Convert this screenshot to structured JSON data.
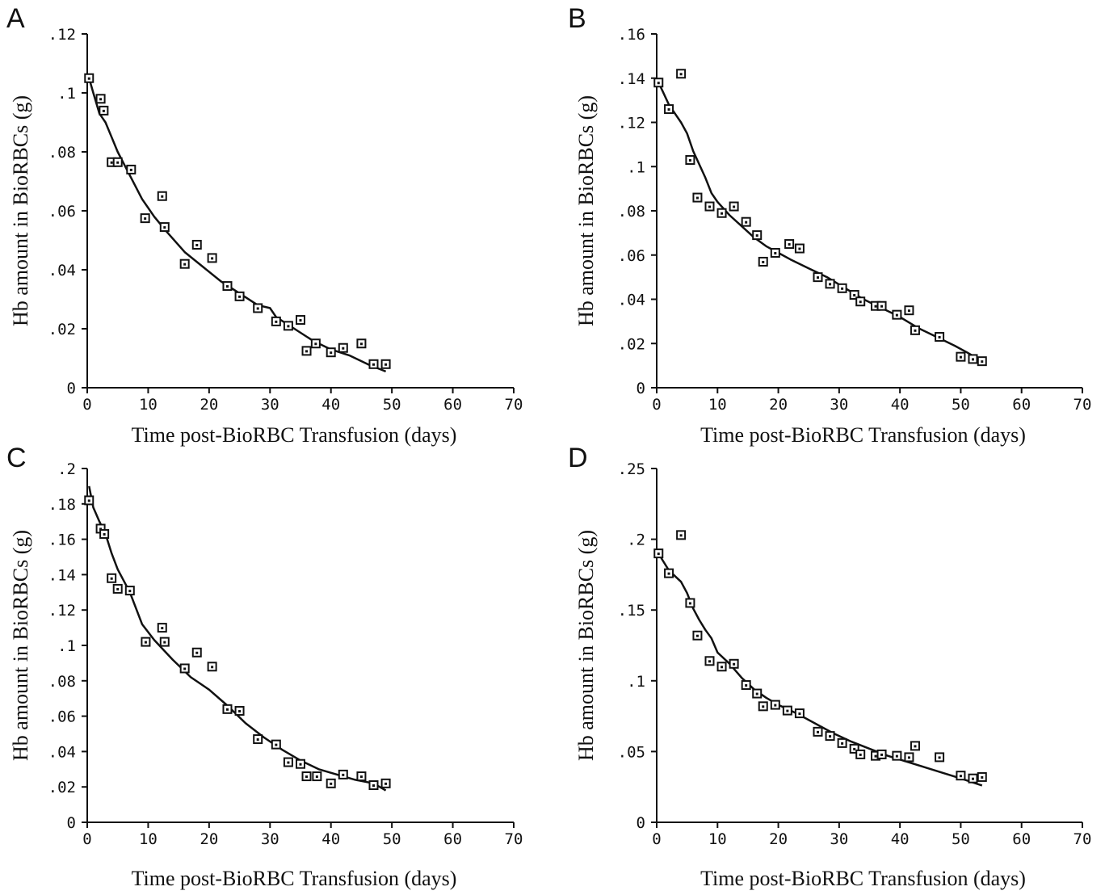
{
  "chart_data": [
    {
      "type": "scatter",
      "panel": "A",
      "xlabel": "Time post-BioRBC Transfusion (days)",
      "ylabel": "Hb amount in BioRBCs (g)",
      "xlim": [
        0,
        70
      ],
      "ylim": [
        0,
        0.12
      ],
      "xticks": [
        "0",
        "10",
        "20",
        "30",
        "40",
        "50",
        "60",
        "70"
      ],
      "yticks": [
        "0",
        ".02",
        ".04",
        ".06",
        ".08",
        ".1",
        ".12"
      ],
      "points": [
        [
          0.3,
          0.105
        ],
        [
          2.2,
          0.098
        ],
        [
          2.7,
          0.094
        ],
        [
          4,
          0.0765
        ],
        [
          5,
          0.0765
        ],
        [
          7.2,
          0.074
        ],
        [
          9.5,
          0.0575
        ],
        [
          12.3,
          0.065
        ],
        [
          12.7,
          0.0545
        ],
        [
          16,
          0.042
        ],
        [
          18,
          0.0485
        ],
        [
          20.5,
          0.044
        ],
        [
          23,
          0.0345
        ],
        [
          25,
          0.031
        ],
        [
          28,
          0.027
        ],
        [
          31,
          0.0225
        ],
        [
          33,
          0.021
        ],
        [
          35,
          0.023
        ],
        [
          36,
          0.0125
        ],
        [
          37.5,
          0.015
        ],
        [
          40,
          0.012
        ],
        [
          42,
          0.0135
        ],
        [
          45,
          0.015
        ],
        [
          47,
          0.008
        ],
        [
          49,
          0.008
        ]
      ],
      "fit": [
        [
          0.3,
          0.105
        ],
        [
          1,
          0.1
        ],
        [
          2,
          0.093
        ],
        [
          3,
          0.09
        ],
        [
          4,
          0.085
        ],
        [
          5,
          0.08
        ],
        [
          7,
          0.072
        ],
        [
          9,
          0.064
        ],
        [
          11,
          0.058
        ],
        [
          13,
          0.053
        ],
        [
          16,
          0.046
        ],
        [
          19,
          0.041
        ],
        [
          22,
          0.036
        ],
        [
          25,
          0.032
        ],
        [
          28,
          0.028
        ],
        [
          30,
          0.027
        ],
        [
          31,
          0.024
        ],
        [
          34,
          0.02
        ],
        [
          37,
          0.016
        ],
        [
          40,
          0.013
        ],
        [
          43,
          0.011
        ],
        [
          46,
          0.008
        ],
        [
          49,
          0.0055
        ]
      ]
    },
    {
      "type": "scatter",
      "panel": "B",
      "xlabel": "Time post-BioRBC Transfusion (days)",
      "ylabel": "Hb amount in BioRBCs (g)",
      "xlim": [
        0,
        70
      ],
      "ylim": [
        0,
        0.16
      ],
      "xticks": [
        "0",
        "10",
        "20",
        "30",
        "40",
        "50",
        "60",
        "70"
      ],
      "yticks": [
        "0",
        ".02",
        ".04",
        ".06",
        ".08",
        ".1",
        ".12",
        ".14",
        ".16"
      ],
      "points": [
        [
          0.3,
          0.138
        ],
        [
          2,
          0.126
        ],
        [
          4,
          0.142
        ],
        [
          5.5,
          0.103
        ],
        [
          6.7,
          0.086
        ],
        [
          8.7,
          0.082
        ],
        [
          10.7,
          0.079
        ],
        [
          12.7,
          0.082
        ],
        [
          14.7,
          0.075
        ],
        [
          16.5,
          0.069
        ],
        [
          17.5,
          0.057
        ],
        [
          19.5,
          0.061
        ],
        [
          21.8,
          0.065
        ],
        [
          23.5,
          0.063
        ],
        [
          26.5,
          0.05
        ],
        [
          28.5,
          0.047
        ],
        [
          30.5,
          0.045
        ],
        [
          32.5,
          0.042
        ],
        [
          33.5,
          0.039
        ],
        [
          36,
          0.037
        ],
        [
          37,
          0.037
        ],
        [
          39.5,
          0.033
        ],
        [
          41.5,
          0.035
        ],
        [
          42.5,
          0.026
        ],
        [
          46.5,
          0.023
        ],
        [
          50,
          0.014
        ],
        [
          52,
          0.013
        ],
        [
          53.5,
          0.012
        ]
      ],
      "fit": [
        [
          0.3,
          0.138
        ],
        [
          1,
          0.134
        ],
        [
          2,
          0.128
        ],
        [
          3,
          0.124
        ],
        [
          4,
          0.12
        ],
        [
          5,
          0.115
        ],
        [
          6,
          0.107
        ],
        [
          7,
          0.101
        ],
        [
          8,
          0.095
        ],
        [
          9,
          0.088
        ],
        [
          10,
          0.084
        ],
        [
          12,
          0.078
        ],
        [
          14,
          0.073
        ],
        [
          16,
          0.068
        ],
        [
          18,
          0.064
        ],
        [
          20,
          0.061
        ],
        [
          22,
          0.058
        ],
        [
          25,
          0.054
        ],
        [
          28,
          0.05
        ],
        [
          31,
          0.045
        ],
        [
          34,
          0.04
        ],
        [
          37,
          0.036
        ],
        [
          40,
          0.032
        ],
        [
          43,
          0.027
        ],
        [
          46,
          0.023
        ],
        [
          49,
          0.019
        ],
        [
          51,
          0.016
        ],
        [
          53.5,
          0.012
        ]
      ]
    },
    {
      "type": "scatter",
      "panel": "C",
      "xlabel": "Time post-BioRBC Transfusion (days)",
      "ylabel": "Hb amount in BioRBCs (g)",
      "xlim": [
        0,
        70
      ],
      "ylim": [
        0,
        0.2
      ],
      "xticks": [
        "0",
        "10",
        "20",
        "30",
        "40",
        "50",
        "60",
        "70"
      ],
      "yticks": [
        "0",
        ".02",
        ".04",
        ".06",
        ".08",
        ".1",
        ".12",
        ".14",
        ".16",
        ".18",
        ".2"
      ],
      "points": [
        [
          0.3,
          0.182
        ],
        [
          2.2,
          0.166
        ],
        [
          2.8,
          0.163
        ],
        [
          4,
          0.138
        ],
        [
          5,
          0.132
        ],
        [
          7,
          0.131
        ],
        [
          9.6,
          0.102
        ],
        [
          12.3,
          0.11
        ],
        [
          12.7,
          0.102
        ],
        [
          16,
          0.087
        ],
        [
          18,
          0.096
        ],
        [
          20.5,
          0.088
        ],
        [
          23,
          0.064
        ],
        [
          25,
          0.063
        ],
        [
          28,
          0.047
        ],
        [
          31,
          0.044
        ],
        [
          33,
          0.034
        ],
        [
          35,
          0.033
        ],
        [
          36,
          0.026
        ],
        [
          37.7,
          0.026
        ],
        [
          40,
          0.022
        ],
        [
          42,
          0.027
        ],
        [
          45,
          0.026
        ],
        [
          47,
          0.021
        ],
        [
          49,
          0.022
        ]
      ],
      "fit": [
        [
          0.3,
          0.19
        ],
        [
          1,
          0.178
        ],
        [
          2,
          0.17
        ],
        [
          3,
          0.163
        ],
        [
          4,
          0.152
        ],
        [
          5,
          0.143
        ],
        [
          7,
          0.13
        ],
        [
          9,
          0.112
        ],
        [
          11,
          0.103
        ],
        [
          14,
          0.092
        ],
        [
          17,
          0.082
        ],
        [
          20,
          0.075
        ],
        [
          23,
          0.066
        ],
        [
          26,
          0.056
        ],
        [
          29,
          0.048
        ],
        [
          32,
          0.041
        ],
        [
          35,
          0.035
        ],
        [
          38,
          0.03
        ],
        [
          41,
          0.027
        ],
        [
          44,
          0.024
        ],
        [
          47,
          0.022
        ],
        [
          49,
          0.018
        ]
      ]
    },
    {
      "type": "scatter",
      "panel": "D",
      "xlabel": "Time post-BioRBC Transfusion (days)",
      "ylabel": "Hb amount in BioRBCs (g)",
      "xlim": [
        0,
        70
      ],
      "ylim": [
        0,
        0.25
      ],
      "xticks": [
        "0",
        "10",
        "20",
        "30",
        "40",
        "50",
        "60",
        "70"
      ],
      "yticks": [
        "0",
        ".05",
        ".1",
        ".15",
        ".2",
        ".25"
      ],
      "points": [
        [
          0.3,
          0.19
        ],
        [
          2,
          0.176
        ],
        [
          4,
          0.203
        ],
        [
          5.5,
          0.155
        ],
        [
          6.7,
          0.132
        ],
        [
          8.7,
          0.114
        ],
        [
          10.7,
          0.11
        ],
        [
          12.7,
          0.112
        ],
        [
          14.7,
          0.097
        ],
        [
          16.5,
          0.091
        ],
        [
          17.5,
          0.082
        ],
        [
          19.5,
          0.083
        ],
        [
          21.5,
          0.079
        ],
        [
          23.5,
          0.077
        ],
        [
          26.5,
          0.064
        ],
        [
          28.5,
          0.061
        ],
        [
          30.5,
          0.056
        ],
        [
          32.5,
          0.052
        ],
        [
          33.5,
          0.048
        ],
        [
          36,
          0.047
        ],
        [
          37,
          0.048
        ],
        [
          39.5,
          0.047
        ],
        [
          41.5,
          0.046
        ],
        [
          42.5,
          0.054
        ],
        [
          46.5,
          0.046
        ],
        [
          50,
          0.033
        ],
        [
          52,
          0.031
        ],
        [
          53.5,
          0.032
        ]
      ],
      "fit": [
        [
          0.3,
          0.19
        ],
        [
          1,
          0.185
        ],
        [
          2,
          0.178
        ],
        [
          3,
          0.174
        ],
        [
          4,
          0.17
        ],
        [
          5,
          0.162
        ],
        [
          6,
          0.151
        ],
        [
          7,
          0.143
        ],
        [
          8,
          0.136
        ],
        [
          9,
          0.13
        ],
        [
          10,
          0.12
        ],
        [
          12,
          0.112
        ],
        [
          14,
          0.102
        ],
        [
          16,
          0.094
        ],
        [
          18,
          0.088
        ],
        [
          20,
          0.083
        ],
        [
          23,
          0.077
        ],
        [
          26,
          0.07
        ],
        [
          29,
          0.063
        ],
        [
          32,
          0.057
        ],
        [
          35,
          0.052
        ],
        [
          38,
          0.047
        ],
        [
          41,
          0.043
        ],
        [
          44,
          0.039
        ],
        [
          47,
          0.035
        ],
        [
          50,
          0.031
        ],
        [
          53.5,
          0.026
        ]
      ]
    }
  ]
}
